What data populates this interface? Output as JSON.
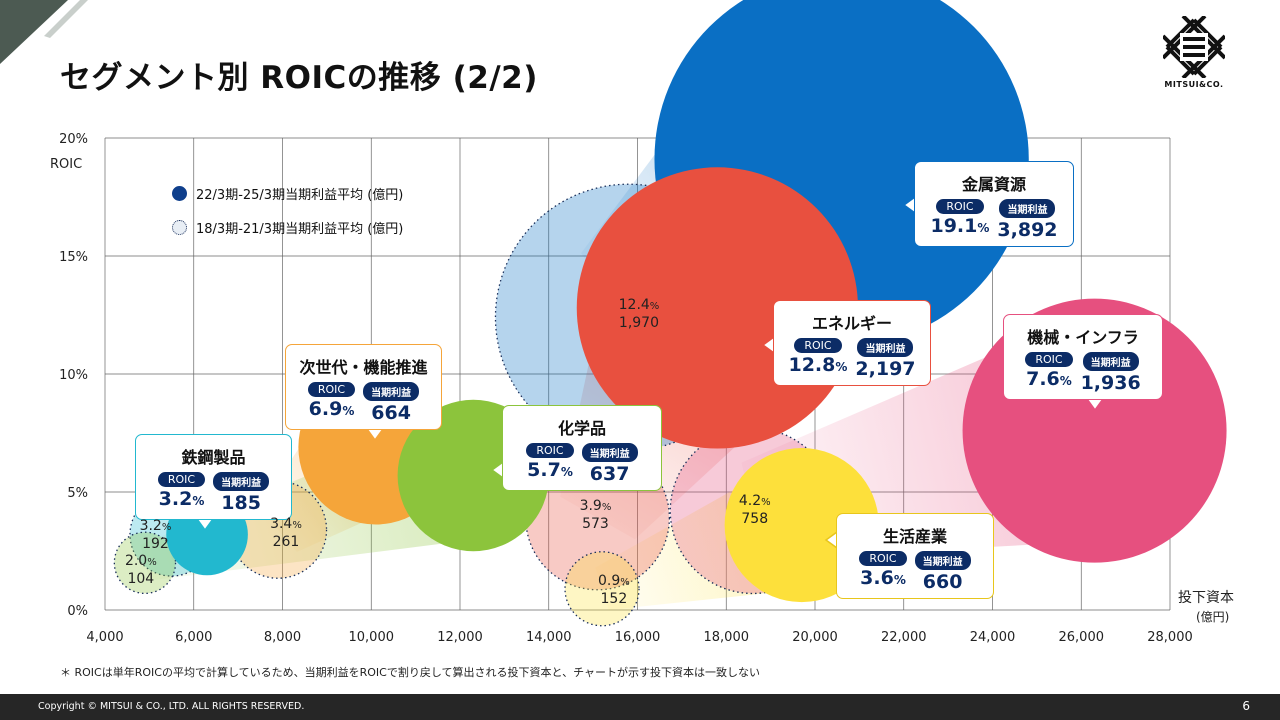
{
  "title": "セグメント別 ROICの推移 (2/2)",
  "logo_text": "MITSUI&CO.",
  "footnote": "＊ ROICは単年ROICの平均で計算しているため、当期利益をROICで割り戻して算出される投下資本と、チャートが示す投下資本は一致しない",
  "footer": {
    "copyright": "Copyright © MITSUI & CO., LTD. ALL RIGHTS RESERVED.",
    "page": "6"
  },
  "legend": {
    "current": "22/3期-25/3期当期利益平均 (億円)",
    "previous": "18/3期-21/3期当期利益平均 (億円)"
  },
  "box_labels": {
    "roic": "ROIC",
    "profit": "当期利益"
  },
  "chart_data": {
    "type": "scatter",
    "ylabel": "ROIC",
    "xlabel": "投下資本",
    "xlabel_unit": "(億円)",
    "xlim": [
      4000,
      28000
    ],
    "ylim": [
      0,
      20
    ],
    "x_ticks": [
      "4,000",
      "6,000",
      "8,000",
      "10,000",
      "12,000",
      "14,000",
      "16,000",
      "18,000",
      "20,000",
      "22,000",
      "24,000",
      "26,000",
      "28,000"
    ],
    "y_ticks": [
      "0%",
      "5%",
      "10%",
      "15%",
      "20%"
    ],
    "grid": true,
    "segments": [
      {
        "name": "鉄鋼製品",
        "color": "#22b8cf",
        "current": {
          "x": 6300,
          "roic": 3.2,
          "roic_text": "3.2",
          "profit": 185,
          "profit_text": "185"
        },
        "previous": {
          "x": 5500,
          "roic": 3.2,
          "roic_text": "3.2",
          "profit": 192,
          "profit_text": "192"
        }
      },
      {
        "name": "次世代・機能推進",
        "color": "#f5a53a",
        "current": {
          "x": 10100,
          "roic": 6.9,
          "roic_text": "6.9",
          "profit": 664,
          "profit_text": "664"
        },
        "previous": {
          "x": 7900,
          "roic": 3.4,
          "roic_text": "3.4",
          "profit": 261,
          "profit_text": "261"
        }
      },
      {
        "name": "化学品",
        "color": "#8cc43c",
        "current": {
          "x": 12300,
          "roic": 5.7,
          "roic_text": "5.7",
          "profit": 637,
          "profit_text": "637"
        },
        "previous": {
          "x": 4900,
          "roic": 2.0,
          "roic_text": "2.0",
          "profit": 104,
          "profit_text": "104"
        }
      },
      {
        "name": "金属資源",
        "color": "#0a6fc4",
        "current": {
          "x": 20600,
          "roic": 19.1,
          "roic_text": "19.1",
          "profit": 3892,
          "profit_text": "3,892"
        },
        "previous": {
          "x": 15800,
          "roic": 12.4,
          "roic_text": "12.4",
          "profit": 1970,
          "profit_text": "1,970"
        }
      },
      {
        "name": "エネルギー",
        "color": "#e8503f",
        "current": {
          "x": 17800,
          "roic": 12.8,
          "roic_text": "12.8",
          "profit": 2197,
          "profit_text": "2,197"
        },
        "previous": {
          "x": 15100,
          "roic": 3.9,
          "roic_text": "3.9",
          "profit": 573,
          "profit_text": "573"
        }
      },
      {
        "name": "機械・インフラ",
        "color": "#e6507f",
        "current": {
          "x": 26300,
          "roic": 7.6,
          "roic_text": "7.6",
          "profit": 1936,
          "profit_text": "1,936"
        },
        "previous": {
          "x": 18600,
          "roic": 4.2,
          "roic_text": "4.2",
          "profit": 758,
          "profit_text": "758"
        }
      },
      {
        "name": "生活産業",
        "color": "#fde03b",
        "current": {
          "x": 19700,
          "roic": 3.6,
          "roic_text": "3.6",
          "profit": 660,
          "profit_text": "660"
        },
        "previous": {
          "x": 15200,
          "roic": 0.9,
          "roic_text": "0.9",
          "profit": 152,
          "profit_text": "152"
        }
      }
    ]
  },
  "colors": {
    "navy": "#0c2c66",
    "grid": "#555555"
  }
}
